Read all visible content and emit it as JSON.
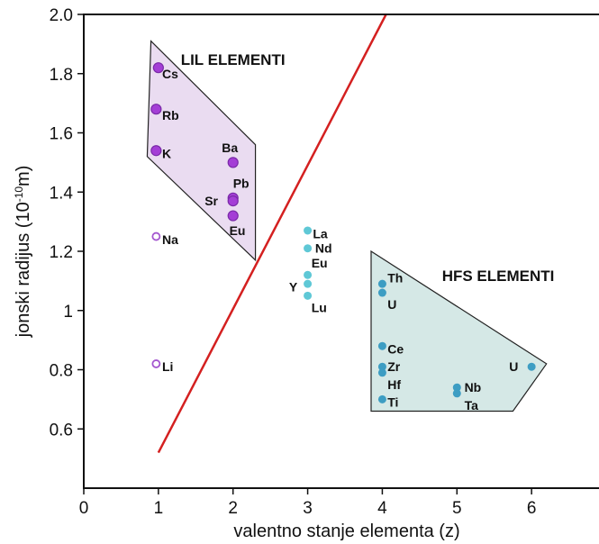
{
  "chart_data": {
    "type": "scatter",
    "xlabel": "valentno stanje elementa (z)",
    "ylabel_main": "jonski radijus (10",
    "ylabel_sup": "-10",
    "ylabel_tail": "m)",
    "xlim": [
      0,
      7
    ],
    "ylim": [
      0.4,
      2.0
    ],
    "x_ticks": [
      0,
      1,
      2,
      3,
      4,
      5,
      6
    ],
    "y_ticks": [
      {
        "v": 0.6,
        "label": "0.6"
      },
      {
        "v": 0.8,
        "label": "0.8"
      },
      {
        "v": 1.0,
        "label": "1"
      },
      {
        "v": 1.2,
        "label": "1.2"
      },
      {
        "v": 1.4,
        "label": "1.4"
      },
      {
        "v": 1.6,
        "label": "1.6"
      },
      {
        "v": 1.8,
        "label": "1.8"
      },
      {
        "v": 2.0,
        "label": "2.0"
      }
    ],
    "regions": [
      {
        "label": "LIL ELEMENTI",
        "label_x": 1.3,
        "label_y": 1.83,
        "fill": "#eadcf1",
        "stroke": "#222222",
        "polygon": [
          [
            0.9,
            1.91
          ],
          [
            2.3,
            1.56
          ],
          [
            2.3,
            1.17
          ],
          [
            0.85,
            1.52
          ]
        ]
      },
      {
        "label": "HFS ELEMENTI",
        "label_x": 4.8,
        "label_y": 1.1,
        "fill": "#d5e8e6",
        "stroke": "#222222",
        "polygon": [
          [
            3.85,
            1.2
          ],
          [
            6.2,
            0.82
          ],
          [
            5.75,
            0.66
          ],
          [
            3.85,
            0.66
          ]
        ]
      }
    ],
    "line": {
      "color": "#d42020",
      "points": [
        [
          1.0,
          0.52
        ],
        [
          4.05,
          2.0
        ]
      ]
    },
    "points": [
      {
        "label": "Cs",
        "x": 1.0,
        "y": 1.82,
        "group": "lil",
        "lx": 0.05,
        "ly": -0.02
      },
      {
        "label": "Rb",
        "x": 0.97,
        "y": 1.68,
        "group": "lil",
        "lx": 0.08,
        "ly": -0.02
      },
      {
        "label": "K",
        "x": 0.97,
        "y": 1.54,
        "group": "lil",
        "lx": 0.08,
        "ly": -0.01
      },
      {
        "label": "Ba",
        "x": 2.0,
        "y": 1.5,
        "group": "lil",
        "lx": -0.15,
        "ly": 0.05
      },
      {
        "label": "Pb",
        "x": 2.0,
        "y": 1.38,
        "group": "lil",
        "lx": 0.0,
        "ly": 0.05
      },
      {
        "label": "Sr",
        "x": 2.0,
        "y": 1.37,
        "group": "lil",
        "lx": -0.38,
        "ly": -0.0
      },
      {
        "label": "Eu",
        "x": 2.0,
        "y": 1.32,
        "group": "lil",
        "lx": -0.05,
        "ly": -0.05
      },
      {
        "label": "Na",
        "x": 0.97,
        "y": 1.25,
        "group": "open",
        "lx": 0.08,
        "ly": -0.01
      },
      {
        "label": "Li",
        "x": 0.97,
        "y": 0.82,
        "group": "open",
        "lx": 0.08,
        "ly": -0.01
      },
      {
        "label": "La",
        "x": 3.0,
        "y": 1.27,
        "group": "mid",
        "lx": 0.07,
        "ly": -0.01
      },
      {
        "label": "Nd",
        "x": 3.0,
        "y": 1.21,
        "group": "mid",
        "lx": 0.1,
        "ly": 0.0
      },
      {
        "label": "Eu",
        "x": 3.0,
        "y": 1.12,
        "group": "mid",
        "lx": 0.05,
        "ly": 0.04
      },
      {
        "label": "Y",
        "x": 3.0,
        "y": 1.09,
        "group": "mid",
        "lx": -0.25,
        "ly": -0.01
      },
      {
        "label": "Lu",
        "x": 3.0,
        "y": 1.05,
        "group": "mid",
        "lx": 0.05,
        "ly": -0.04
      },
      {
        "label": "Th",
        "x": 4.0,
        "y": 1.09,
        "group": "hfs",
        "lx": 0.07,
        "ly": 0.02
      },
      {
        "label": "U",
        "x": 4.0,
        "y": 1.06,
        "group": "hfs",
        "lx": 0.07,
        "ly": -0.04
      },
      {
        "label": "Ce",
        "x": 4.0,
        "y": 0.88,
        "group": "hfs",
        "lx": 0.07,
        "ly": -0.01
      },
      {
        "label": "Zr",
        "x": 4.0,
        "y": 0.81,
        "group": "hfs",
        "lx": 0.07,
        "ly": 0.0
      },
      {
        "label": "Hf",
        "x": 4.0,
        "y": 0.79,
        "group": "hfs",
        "lx": 0.07,
        "ly": -0.04
      },
      {
        "label": "Ti",
        "x": 4.0,
        "y": 0.7,
        "group": "hfs",
        "lx": 0.07,
        "ly": -0.01
      },
      {
        "label": "Nb",
        "x": 5.0,
        "y": 0.74,
        "group": "hfs",
        "lx": 0.1,
        "ly": 0.0
      },
      {
        "label": "Ta",
        "x": 5.0,
        "y": 0.72,
        "group": "hfs",
        "lx": 0.1,
        "ly": -0.04
      },
      {
        "label": "U",
        "x": 6.0,
        "y": 0.81,
        "group": "hfs",
        "lx": -0.3,
        "ly": -0.0
      }
    ],
    "colors": {
      "lil": "#a43ed6",
      "lil_stroke": "#7a2aa8",
      "open_stroke": "#a457cf",
      "mid": "#5fc8d6",
      "hfs": "#3d9dc3"
    }
  }
}
